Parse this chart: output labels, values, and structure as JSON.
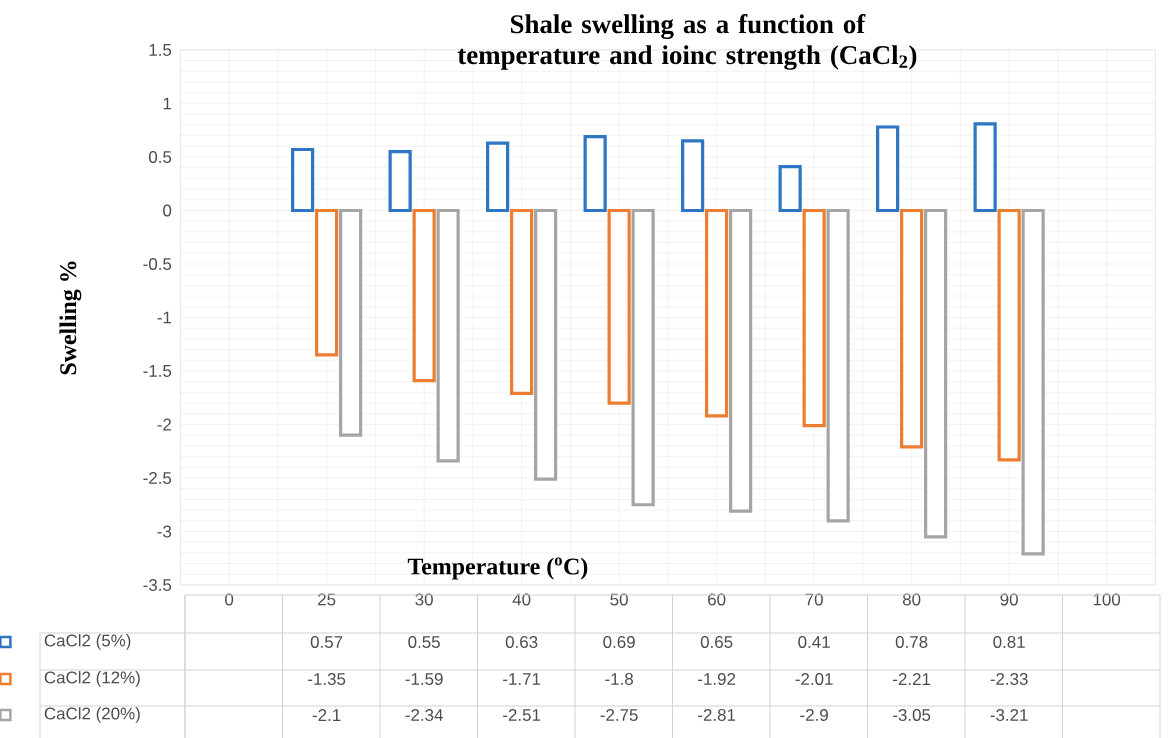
{
  "chart_data": {
    "type": "bar",
    "title": "Shale swelling as a function of temperature and ioinc strength (CaCl$_{2}$)",
    "xlabel": "Temperature ($^{o}$C)",
    "ylabel": "Swelling %",
    "categories": [
      "0",
      "25",
      "30",
      "40",
      "50",
      "60",
      "70",
      "80",
      "90",
      "100"
    ],
    "series": [
      {
        "name": "CaCl2 (5%)",
        "color": "#2e75c4",
        "values": [
          null,
          0.57,
          0.55,
          0.63,
          0.69,
          0.65,
          0.41,
          0.78,
          0.81,
          null
        ]
      },
      {
        "name": "CaCl2 (12%)",
        "color": "#ed7d31",
        "values": [
          null,
          -1.35,
          -1.59,
          -1.71,
          -1.8,
          -1.92,
          -2.01,
          -2.21,
          -2.33,
          null
        ]
      },
      {
        "name": "CaCl2 (20%)",
        "color": "#a5a5a5",
        "values": [
          null,
          -2.1,
          -2.34,
          -2.51,
          -2.75,
          -2.81,
          -2.9,
          -3.05,
          -3.21,
          null
        ]
      }
    ],
    "ylim": [
      -3.5,
      1.5
    ],
    "yticks": [
      -3.5,
      -3,
      -2.5,
      -2,
      -1.5,
      -1,
      -0.5,
      0,
      0.5,
      1,
      1.5
    ],
    "grid": true,
    "legend": "bottom",
    "data_labels": true
  }
}
